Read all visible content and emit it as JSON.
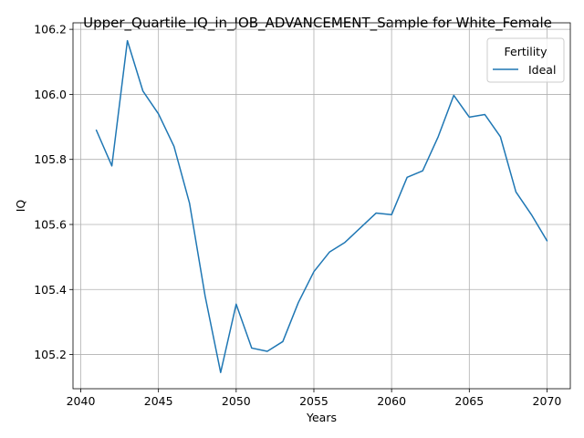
{
  "chart_data": {
    "type": "line",
    "title": "Upper_Quartile_IQ_in_JOB_ADVANCEMENT_Sample for White_Female",
    "xlabel": "Years",
    "ylabel": "IQ",
    "xlim": [
      2039.5,
      2071.5
    ],
    "ylim": [
      105.095,
      106.22
    ],
    "xticks": [
      2040,
      2045,
      2050,
      2055,
      2060,
      2065,
      2070
    ],
    "yticks": [
      105.2,
      105.4,
      105.6,
      105.8,
      106.0,
      106.2
    ],
    "ytick_labels": [
      "105.2",
      "105.4",
      "105.6",
      "105.8",
      "106.0",
      "106.2"
    ],
    "grid": true,
    "legend": {
      "title": "Fertility",
      "placement": "top-right"
    },
    "x": [
      2041,
      2042,
      2043,
      2044,
      2045,
      2046,
      2047,
      2048,
      2049,
      2050,
      2051,
      2052,
      2053,
      2054,
      2055,
      2056,
      2057,
      2058,
      2059,
      2060,
      2061,
      2062,
      2063,
      2064,
      2065,
      2066,
      2067,
      2068,
      2069,
      2070
    ],
    "series": [
      {
        "name": "Ideal",
        "color": "#1f77b4",
        "values": [
          105.89,
          105.78,
          106.165,
          106.01,
          105.94,
          105.84,
          105.665,
          105.38,
          105.145,
          105.355,
          105.22,
          105.21,
          105.24,
          105.36,
          105.455,
          105.515,
          105.545,
          105.59,
          105.635,
          105.63,
          105.745,
          105.765,
          105.87,
          105.997,
          105.93,
          105.938,
          105.87,
          105.7,
          105.63,
          105.55
        ]
      }
    ]
  }
}
